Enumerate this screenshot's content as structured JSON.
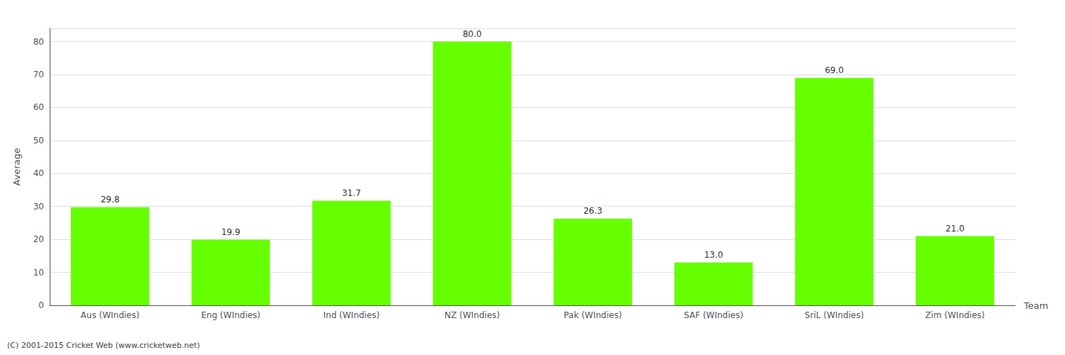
{
  "chart_data": {
    "type": "bar",
    "categories": [
      "Aus (WIndies)",
      "Eng (WIndies)",
      "Ind (WIndies)",
      "NZ (WIndies)",
      "Pak (WIndies)",
      "SAF (WIndies)",
      "SriL (WIndies)",
      "Zim (WIndies)"
    ],
    "values": [
      29.8,
      19.9,
      31.7,
      80.0,
      26.3,
      13.0,
      69.0,
      21.0
    ],
    "value_labels": [
      "29.8",
      "19.9",
      "31.7",
      "80.0",
      "26.3",
      "13.0",
      "69.0",
      "21.0"
    ],
    "data_labels": true,
    "color": "#66ff00",
    "xlabel": "Team",
    "ylabel": "Average",
    "ylim": [
      0,
      84
    ],
    "yticks": [
      0,
      10,
      20,
      30,
      40,
      50,
      60,
      70,
      80
    ],
    "grid": true,
    "annotations": [
      "(C) 2001-2015 Cricket Web (www.cricketweb.net)"
    ]
  }
}
